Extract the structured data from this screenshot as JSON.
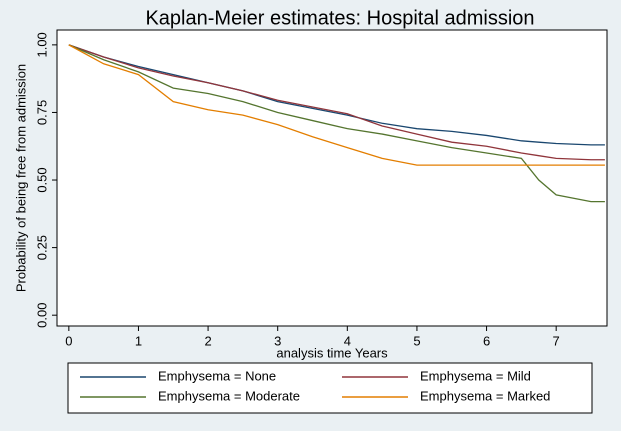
{
  "chart_data": {
    "type": "line",
    "title": "Kaplan-Meier estimates: Hospital admission",
    "x_label": "analysis time Years",
    "y_label": "Probability of being free from admission",
    "x": [
      0,
      0.5,
      1,
      1.5,
      2,
      2.5,
      3,
      3.5,
      4,
      4.5,
      5,
      5.5,
      6,
      6.5,
      6.75,
      7,
      7.5,
      7.7
    ],
    "series": [
      {
        "name": "Emphysema = None",
        "color": "#1a476f",
        "values": [
          1,
          0.955,
          0.92,
          0.89,
          0.86,
          0.83,
          0.79,
          0.765,
          0.74,
          0.71,
          0.69,
          0.68,
          0.665,
          0.645,
          0.64,
          0.635,
          0.63,
          0.63
        ]
      },
      {
        "name": "Emphysema = Mild",
        "color": "#90353b",
        "values": [
          1,
          0.955,
          0.915,
          0.885,
          0.86,
          0.83,
          0.795,
          0.77,
          0.745,
          0.7,
          0.67,
          0.64,
          0.625,
          0.6,
          0.59,
          0.58,
          0.575,
          0.575
        ]
      },
      {
        "name": "Emphysema = Moderate",
        "color": "#55752f",
        "values": [
          1,
          0.945,
          0.9,
          0.84,
          0.82,
          0.79,
          0.75,
          0.72,
          0.69,
          0.67,
          0.645,
          0.62,
          0.6,
          0.58,
          0.5,
          0.445,
          0.42,
          0.42
        ]
      },
      {
        "name": "Emphysema = Marked",
        "color": "#e37e00",
        "values": [
          1,
          0.93,
          0.89,
          0.79,
          0.76,
          0.74,
          0.705,
          0.66,
          0.62,
          0.58,
          0.555,
          0.555,
          0.555,
          0.555,
          0.555,
          0.555,
          0.555,
          0.555
        ]
      }
    ],
    "xlim": [
      -0.17,
      7.73
    ],
    "xticks": [
      0,
      1,
      2,
      3,
      4,
      5,
      6,
      7
    ],
    "ylim": [
      -0.04,
      1.055
    ],
    "yticks": [
      {
        "value": 0,
        "label": "0.00"
      },
      {
        "value": 0.25,
        "label": "0.25"
      },
      {
        "value": 0.5,
        "label": "0.50"
      },
      {
        "value": 0.75,
        "label": "0.75"
      },
      {
        "value": 1,
        "label": "1.00"
      }
    ],
    "legend": "bottom"
  }
}
